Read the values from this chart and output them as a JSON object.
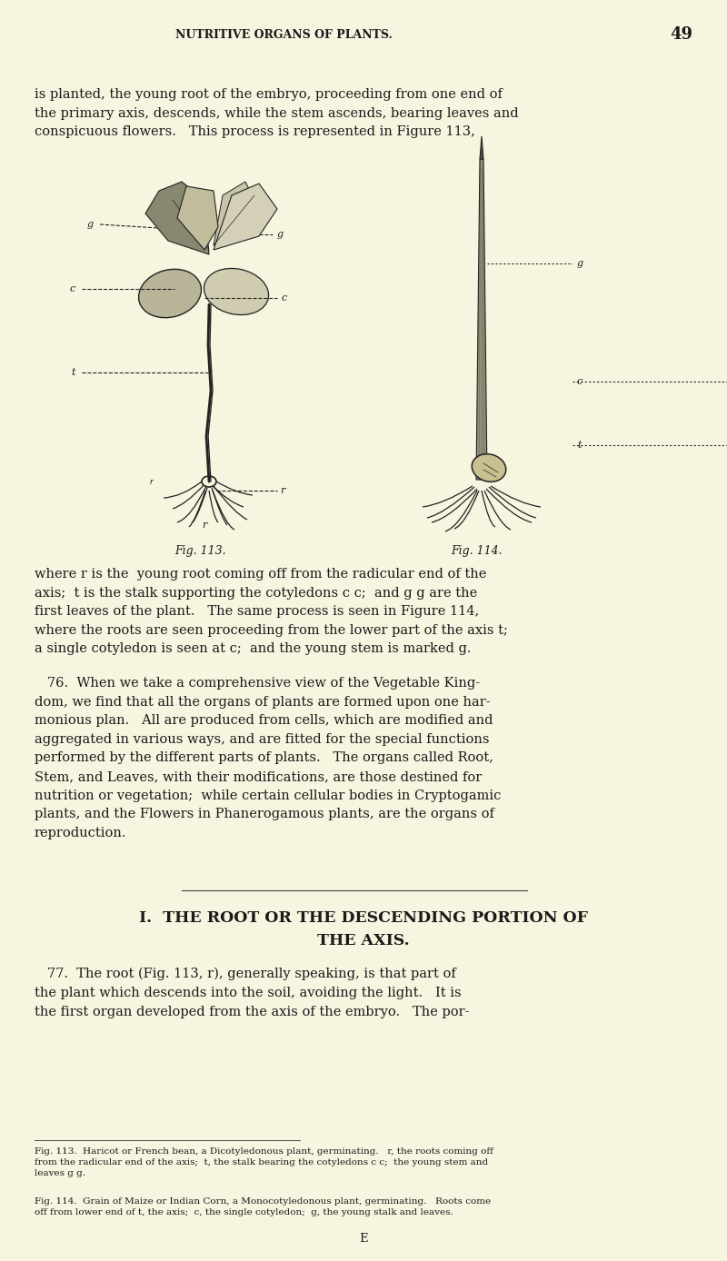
{
  "bg_color": "#f7f4df",
  "text_color": "#1a1a1a",
  "page_width": 8.0,
  "page_height": 13.88,
  "dpi": 100,
  "header": "NUTRITIVE ORGANS OF PLANTS.",
  "page_number": "49",
  "para1": "is planted, the young root of the embryo, proceeding from one end of\nthe primary axis, descends, while the stem ascends, bearing leaves and\nconspicuous flowers.   This process is represented in Figure 113,",
  "para2": "where r is the  young root coming off from the radicular end of the\naxis;  t is the stalk supporting the cotyledons c c;  and g g are the\nfirst leaves of the plant.   The same process is seen in Figure 114,\nwhere the roots are seen proceeding from the lower part of the axis t;\na single cotyledon is seen at c;  and the young stem is marked g.",
  "para3": "   76.  When we take a comprehensive view of the Vegetable King-\ndom, we find that all the organs of plants are formed upon one har-\nmonious plan.   All are produced from cells, which are modified and\naggregated in various ways, and are fitted for the special functions\nperformed by the different parts of plants.   The organs called Root,\nStem, and Leaves, with their modifications, are those destined for\nnutrition or vegetation;  while certain cellular bodies in Cryptogamic\nplants, and the Flowers in Phanerogamous plants, are the organs of\nreproduction.",
  "section_header1": "I.  THE ROOT OR THE DESCENDING PORTION OF",
  "section_header2": "THE AXIS.",
  "para4": "   77.  The root (Fig. 113, r), generally speaking, is that part of\nthe plant which descends into the soil, avoiding the light.   It is\nthe first organ developed from the axis of the embryo.   The por-",
  "fig113_caption": "Fig. 113.",
  "fig114_caption": "Fig. 114.",
  "footnote1": "Fig. 113.  Haricot or French bean, a Dicotyledonous plant, germinating.   r, the roots coming off\nfrom the radicular end of the axis;  t, the stalk bearing the cotyledons c c;  the young stem and\nleaves g g.",
  "footnote2": "Fig. 114.  Grain of Maize or Indian Corn, a Monocotyledonous plant, germinating.   Roots come\noff from lower end of t, the axis;  c, the single cotyledon;  g, the young stalk and leaves.",
  "bottom_letter": "E"
}
